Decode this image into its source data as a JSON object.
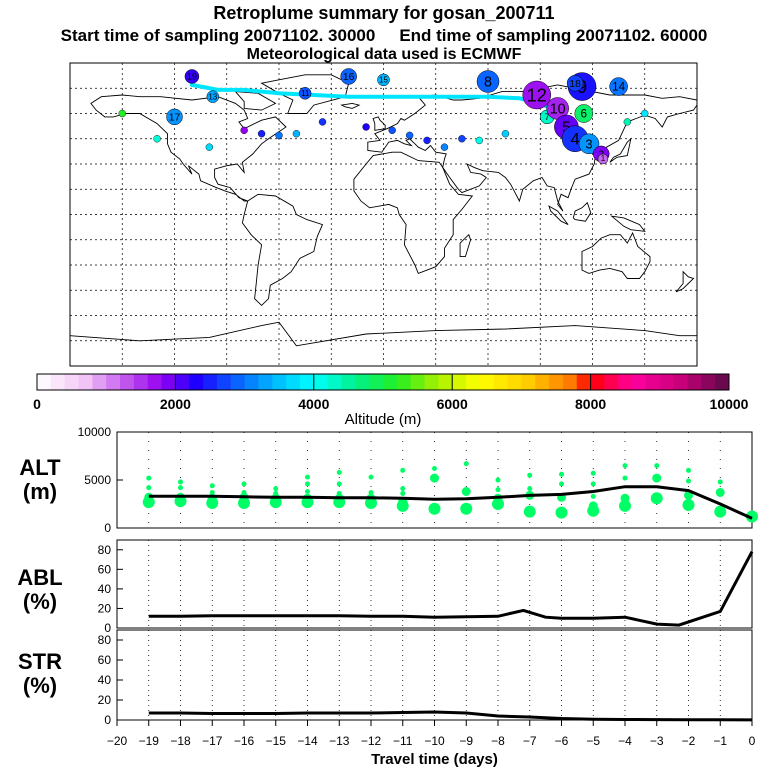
{
  "header": {
    "title": "Retroplume summary for gosan_200711",
    "start_label": "Start time of sampling 20071102. 30000",
    "end_label": "End time of sampling 20071102. 60000",
    "met_label": "Meteorological data used is ECMWF"
  },
  "colors": {
    "plume": "#00ff66",
    "line": "#000000",
    "trajectory": "#00e5ff"
  },
  "chart_data": [
    {
      "type": "map",
      "name": "retroplume-map",
      "plume_labels": [
        "19",
        "16",
        "15",
        "8",
        "13",
        "11",
        "9",
        "18",
        "14",
        "12",
        "17",
        "7",
        "10",
        "6",
        "5",
        "4",
        "3",
        "2",
        "1"
      ],
      "colorbar": {
        "label": "Altitude (m)",
        "ticks": [
          0,
          2000,
          4000,
          6000,
          8000,
          10000
        ],
        "range": [
          0,
          10000
        ]
      }
    },
    {
      "type": "scatter+line",
      "name": "alt-panel",
      "panel_label": "ALT",
      "panel_unit": "(m)",
      "ylim": [
        0,
        10000
      ],
      "yticks": [
        0,
        5000,
        10000
      ],
      "x": [
        -19,
        -18,
        -17,
        -16,
        -15,
        -14,
        -13,
        -12,
        -11,
        -10,
        -9,
        -8,
        -7,
        -6,
        -5,
        -4,
        -3,
        -2,
        -1,
        0
      ],
      "mean_altitude": [
        3300,
        3300,
        3300,
        3250,
        3200,
        3200,
        3150,
        3150,
        3100,
        3000,
        3050,
        3200,
        3400,
        3500,
        3800,
        4300,
        4300,
        3900,
        2500,
        1000
      ],
      "clusters": [
        [
          5200,
          4200,
          3200,
          2700
        ],
        [
          4800,
          4200,
          3200,
          2800
        ],
        [
          4400,
          3700,
          3100,
          2600
        ],
        [
          4600,
          3700,
          3200,
          2600
        ],
        [
          4100,
          3600,
          3100,
          2700
        ],
        [
          5300,
          4600,
          3800,
          3100,
          2700
        ],
        [
          5800,
          4600,
          3600,
          3100,
          2700
        ],
        [
          5300,
          3700,
          3100,
          2600
        ],
        [
          6000,
          4100,
          3600,
          2800,
          2300
        ],
        [
          6200,
          5200,
          2000
        ],
        [
          6700,
          3800,
          2000
        ],
        [
          5000,
          4000,
          3100,
          2500
        ],
        [
          5500,
          4100,
          3400,
          1700
        ],
        [
          5600,
          4600,
          3200,
          1600
        ],
        [
          5700,
          4600,
          3300,
          2300,
          1800
        ],
        [
          6500,
          5200,
          3100,
          2300
        ],
        [
          6500,
          5200,
          3100
        ],
        [
          6000,
          4900,
          3400,
          2400
        ],
        [
          4800,
          3700,
          1700
        ],
        [
          1200
        ]
      ]
    },
    {
      "type": "line",
      "name": "abl-panel",
      "panel_label": "ABL",
      "panel_unit": "(%)",
      "ylim": [
        0,
        90
      ],
      "yticks": [
        0,
        20,
        40,
        60,
        80
      ],
      "x": [
        -19,
        -18,
        -17,
        -16,
        -15,
        -14,
        -13,
        -12,
        -11,
        -10,
        -9,
        -8,
        -7.2,
        -6.5,
        -6,
        -5,
        -4,
        -3,
        -2.3,
        -1,
        0
      ],
      "values": [
        12,
        12,
        12.5,
        12.5,
        12.5,
        12.5,
        12.5,
        12,
        12,
        11,
        11.5,
        12,
        18,
        11,
        10,
        10,
        11,
        4,
        3,
        17,
        78
      ]
    },
    {
      "type": "line",
      "name": "str-panel",
      "panel_label": "STR",
      "panel_unit": "(%)",
      "ylim": [
        0,
        90
      ],
      "yticks": [
        0,
        20,
        40,
        60,
        80
      ],
      "x": [
        -19,
        -18,
        -17,
        -16,
        -15,
        -14,
        -13,
        -12,
        -11,
        -10,
        -9,
        -8,
        -7,
        -6,
        -5,
        -4,
        -3,
        -2,
        -1,
        0
      ],
      "values": [
        7,
        7,
        6.5,
        6.5,
        6.5,
        7,
        7,
        7,
        7.5,
        8,
        7,
        4,
        3,
        1.5,
        0.8,
        0.5,
        0.4,
        0.3,
        0.2,
        0.1
      ],
      "xlabel": "Travel time (days)",
      "xticks": [
        -20,
        -19,
        -18,
        -17,
        -16,
        -15,
        -14,
        -13,
        -12,
        -11,
        -10,
        -9,
        -8,
        -7,
        -6,
        -5,
        -4,
        -3,
        -2,
        -1,
        0
      ]
    }
  ]
}
